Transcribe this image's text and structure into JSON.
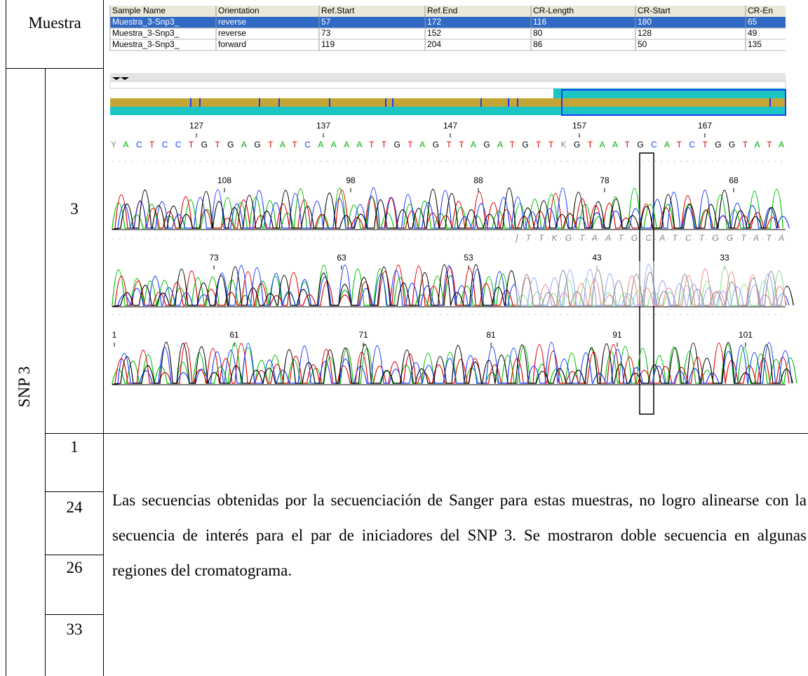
{
  "table": {
    "header": "Muestra",
    "group": "SNP 3",
    "samples": [
      "3",
      "1",
      "24",
      "26",
      "33"
    ],
    "note": "Las secuencias obtenidas por la secuenciación de Sanger para estas muestras, no logro alinearse con la secuencia de interés para el par de iniciadores del SNP 3. Se mostraron doble secuencia en algunas regiones del cromatograma."
  },
  "software": {
    "columns": [
      "Sample Name",
      "Orientation",
      "Ref.Start",
      "Ref.End",
      "CR-Length",
      "CR-Start",
      "CR-En"
    ],
    "rows": [
      [
        "Muestra_3-Snp3_",
        "reverse",
        57,
        172,
        116,
        180,
        65
      ],
      [
        "Muestra_3-Snp3_",
        "reverse",
        73,
        152,
        80,
        128,
        49
      ],
      [
        "Muestra_3-Snp3_",
        "forward",
        119,
        204,
        86,
        50,
        135
      ]
    ],
    "ruler": [
      127,
      137,
      147,
      157,
      167
    ],
    "sequence": "YACTCCTGTGAGTATCAAAATTGTAGTTAGATGTTKGTAATGCATCTGGTATA",
    "trace1_labels": [
      108,
      98,
      88,
      78,
      68
    ],
    "trace2_sequence": "]TTKGTAATGCATCTGGTATA",
    "trace2_labels": [
      73,
      63,
      53,
      43,
      33
    ],
    "trace3_labels": [
      1,
      61,
      71,
      81,
      91,
      101
    ]
  }
}
